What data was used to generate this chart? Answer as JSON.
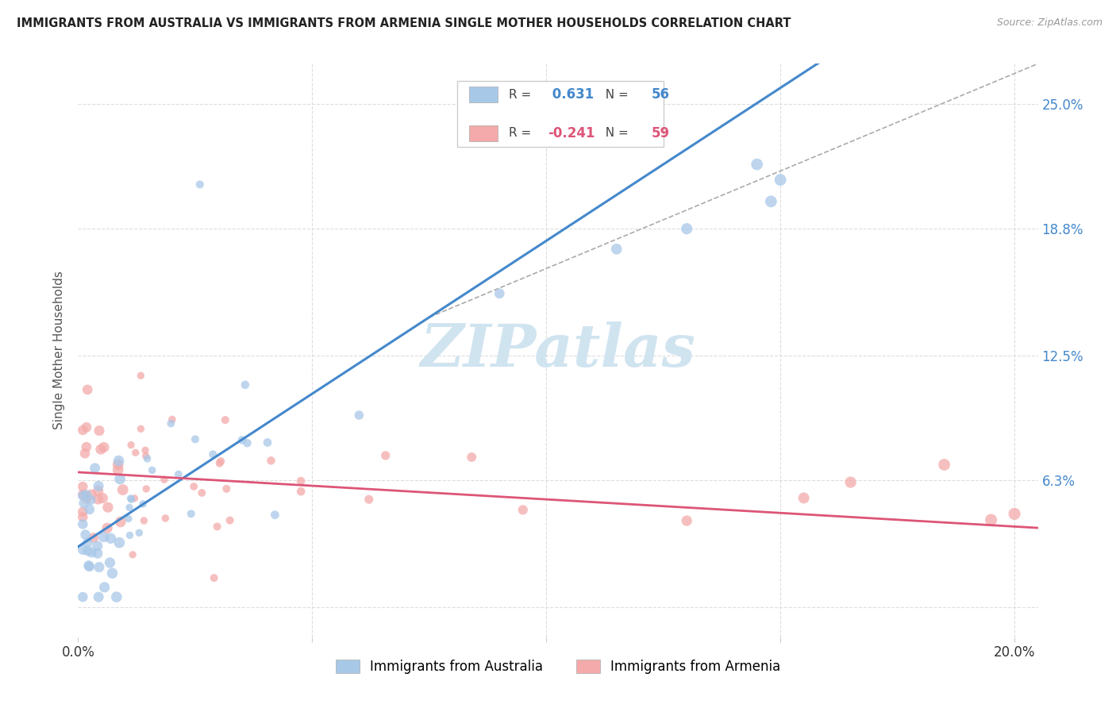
{
  "title": "IMMIGRANTS FROM AUSTRALIA VS IMMIGRANTS FROM ARMENIA SINGLE MOTHER HOUSEHOLDS CORRELATION CHART",
  "source": "Source: ZipAtlas.com",
  "ylabel": "Single Mother Households",
  "legend_label_1": "Immigrants from Australia",
  "legend_label_2": "Immigrants from Armenia",
  "r1": 0.631,
  "n1": 56,
  "r2": -0.241,
  "n2": 59,
  "color1": "#a8c8e8",
  "color2": "#f4aaaa",
  "line_color1": "#4488cc",
  "line_color2": "#dd5577",
  "dashed_line_color": "#aaaaaa",
  "xlim": [
    0.0,
    0.205
  ],
  "ylim": [
    -0.015,
    0.27
  ],
  "yticks": [
    0.0,
    0.063,
    0.125,
    0.188,
    0.25
  ],
  "ytick_labels": [
    "",
    "6.3%",
    "12.5%",
    "18.8%",
    "25.0%"
  ],
  "xticks": [
    0.0,
    0.05,
    0.1,
    0.15,
    0.2
  ],
  "xtick_labels": [
    "0.0%",
    "",
    "",
    "",
    "20.0%"
  ],
  "watermark": "ZIPatlas",
  "watermark_color": "#d0e4f0",
  "background_color": "#ffffff",
  "grid_color": "#dddddd",
  "aus_seed": 42,
  "arm_seed": 99
}
